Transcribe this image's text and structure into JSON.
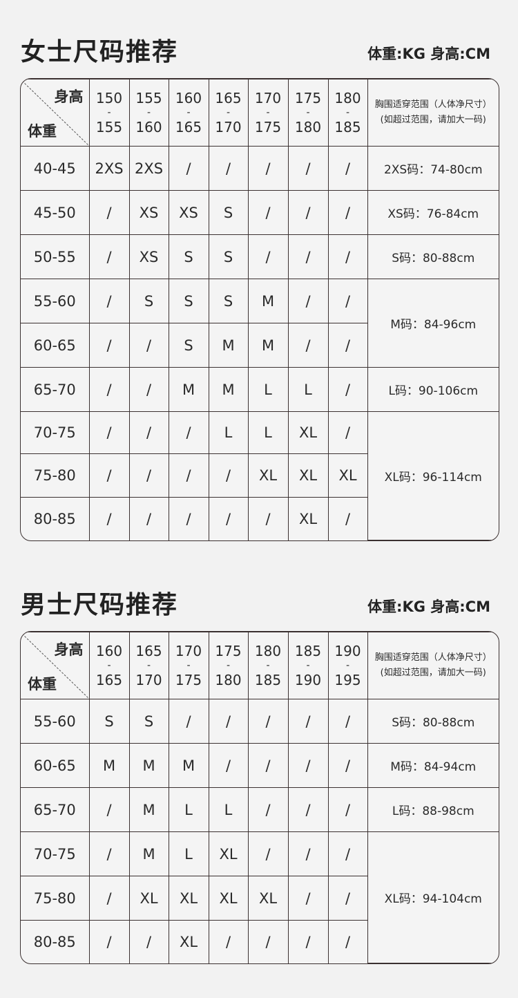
{
  "women": {
    "title": "女士尺码推荐",
    "units": "体重:KG 身高:CM",
    "corner_height": "身高",
    "corner_weight": "体重",
    "heights": [
      [
        "150",
        "155"
      ],
      [
        "155",
        "160"
      ],
      [
        "160",
        "165"
      ],
      [
        "165",
        "170"
      ],
      [
        "170",
        "175"
      ],
      [
        "175",
        "180"
      ],
      [
        "180",
        "185"
      ]
    ],
    "chest_header": [
      "胸围适穿范围（人体净尺寸）",
      "(如超过范围，请加大一码)"
    ],
    "rows": [
      {
        "weight": "40-45",
        "sizes": [
          "2XS",
          "2XS",
          "/",
          "/",
          "/",
          "/",
          "/"
        ]
      },
      {
        "weight": "45-50",
        "sizes": [
          "/",
          "XS",
          "XS",
          "S",
          "/",
          "/",
          "/"
        ]
      },
      {
        "weight": "50-55",
        "sizes": [
          "/",
          "XS",
          "S",
          "S",
          "/",
          "/",
          "/"
        ]
      },
      {
        "weight": "55-60",
        "sizes": [
          "/",
          "S",
          "S",
          "S",
          "M",
          "/",
          "/"
        ]
      },
      {
        "weight": "60-65",
        "sizes": [
          "/",
          "/",
          "S",
          "M",
          "M",
          "/",
          "/"
        ]
      },
      {
        "weight": "65-70",
        "sizes": [
          "/",
          "/",
          "M",
          "M",
          "L",
          "L",
          "/"
        ]
      },
      {
        "weight": "70-75",
        "sizes": [
          "/",
          "/",
          "/",
          "L",
          "L",
          "XL",
          "/"
        ]
      },
      {
        "weight": "75-80",
        "sizes": [
          "/",
          "/",
          "/",
          "/",
          "XL",
          "XL",
          "XL"
        ]
      },
      {
        "weight": "80-85",
        "sizes": [
          "/",
          "/",
          "/",
          "/",
          "/",
          "XL",
          "/"
        ]
      }
    ],
    "chest": [
      {
        "label": "2XS码：74-80cm",
        "span": 1
      },
      {
        "label": "XS码：76-84cm",
        "span": 1
      },
      {
        "label": "S码：80-88cm",
        "span": 1
      },
      {
        "label": "M码：84-96cm",
        "span": 2
      },
      {
        "label": "L码：90-106cm",
        "span": 1
      },
      {
        "label": "XL码：96-114cm",
        "span": 3
      }
    ]
  },
  "men": {
    "title": "男士尺码推荐",
    "units": "体重:KG 身高:CM",
    "corner_height": "身高",
    "corner_weight": "体重",
    "heights": [
      [
        "160",
        "165"
      ],
      [
        "165",
        "170"
      ],
      [
        "170",
        "175"
      ],
      [
        "175",
        "180"
      ],
      [
        "180",
        "185"
      ],
      [
        "185",
        "190"
      ],
      [
        "190",
        "195"
      ]
    ],
    "chest_header": [
      "胸围适穿范围（人体净尺寸）",
      "(如超过范围，请加大一码)"
    ],
    "rows": [
      {
        "weight": "55-60",
        "sizes": [
          "S",
          "S",
          "/",
          "/",
          "/",
          "/",
          "/"
        ]
      },
      {
        "weight": "60-65",
        "sizes": [
          "M",
          "M",
          "M",
          "/",
          "/",
          "/",
          "/"
        ]
      },
      {
        "weight": "65-70",
        "sizes": [
          "/",
          "M",
          "L",
          "L",
          "/",
          "/",
          "/"
        ]
      },
      {
        "weight": "70-75",
        "sizes": [
          "/",
          "M",
          "L",
          "XL",
          "/",
          "/",
          "/"
        ]
      },
      {
        "weight": "75-80",
        "sizes": [
          "/",
          "XL",
          "XL",
          "XL",
          "XL",
          "/",
          "/"
        ]
      },
      {
        "weight": "80-85",
        "sizes": [
          "/",
          "/",
          "XL",
          "/",
          "/",
          "/",
          "/"
        ]
      }
    ],
    "chest": [
      {
        "label": "S码：80-88cm",
        "span": 1
      },
      {
        "label": "M码：84-94cm",
        "span": 1
      },
      {
        "label": "L码：88-98cm",
        "span": 1
      },
      {
        "label": "XL码：94-104cm",
        "span": 3
      }
    ]
  }
}
